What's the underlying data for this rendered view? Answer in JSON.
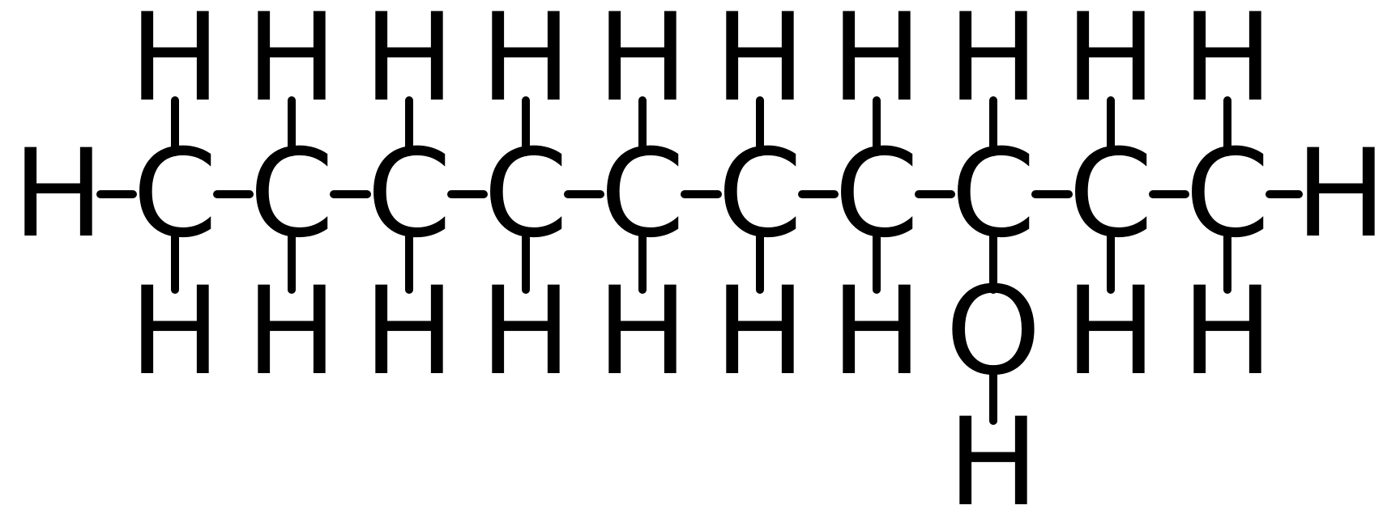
{
  "molecule": {
    "colors": {
      "atom": "#000000",
      "bond": "#000000",
      "background": "#ffffff"
    },
    "atoms": [
      {
        "id": "h-left",
        "element": "H"
      },
      {
        "id": "c1",
        "element": "C"
      },
      {
        "id": "c2",
        "element": "C"
      },
      {
        "id": "c3",
        "element": "C"
      },
      {
        "id": "c4",
        "element": "C"
      },
      {
        "id": "c5",
        "element": "C"
      },
      {
        "id": "c6",
        "element": "C"
      },
      {
        "id": "c7",
        "element": "C"
      },
      {
        "id": "c8",
        "element": "C"
      },
      {
        "id": "c9",
        "element": "C"
      },
      {
        "id": "c10",
        "element": "C"
      },
      {
        "id": "h-right",
        "element": "H"
      },
      {
        "id": "h-top-1",
        "element": "H"
      },
      {
        "id": "h-top-2",
        "element": "H"
      },
      {
        "id": "h-top-3",
        "element": "H"
      },
      {
        "id": "h-top-4",
        "element": "H"
      },
      {
        "id": "h-top-5",
        "element": "H"
      },
      {
        "id": "h-top-6",
        "element": "H"
      },
      {
        "id": "h-top-7",
        "element": "H"
      },
      {
        "id": "h-top-8",
        "element": "H"
      },
      {
        "id": "h-top-9",
        "element": "H"
      },
      {
        "id": "h-top-10",
        "element": "H"
      },
      {
        "id": "h-bot-1",
        "element": "H"
      },
      {
        "id": "h-bot-2",
        "element": "H"
      },
      {
        "id": "h-bot-3",
        "element": "H"
      },
      {
        "id": "h-bot-4",
        "element": "H"
      },
      {
        "id": "h-bot-5",
        "element": "H"
      },
      {
        "id": "h-bot-6",
        "element": "H"
      },
      {
        "id": "h-bot-7",
        "element": "H"
      },
      {
        "id": "o8",
        "element": "O"
      },
      {
        "id": "h-bot-9",
        "element": "H"
      },
      {
        "id": "h-bot-10",
        "element": "H"
      },
      {
        "id": "h-hydroxyl",
        "element": "H"
      }
    ],
    "bonds": [
      [
        "h-left",
        "c1"
      ],
      [
        "c1",
        "c2"
      ],
      [
        "c2",
        "c3"
      ],
      [
        "c3",
        "c4"
      ],
      [
        "c4",
        "c5"
      ],
      [
        "c5",
        "c6"
      ],
      [
        "c6",
        "c7"
      ],
      [
        "c7",
        "c8"
      ],
      [
        "c8",
        "c9"
      ],
      [
        "c9",
        "c10"
      ],
      [
        "c10",
        "h-right"
      ],
      [
        "c1",
        "h-top-1"
      ],
      [
        "c2",
        "h-top-2"
      ],
      [
        "c3",
        "h-top-3"
      ],
      [
        "c4",
        "h-top-4"
      ],
      [
        "c5",
        "h-top-5"
      ],
      [
        "c6",
        "h-top-6"
      ],
      [
        "c7",
        "h-top-7"
      ],
      [
        "c8",
        "h-top-8"
      ],
      [
        "c9",
        "h-top-9"
      ],
      [
        "c10",
        "h-top-10"
      ],
      [
        "c1",
        "h-bot-1"
      ],
      [
        "c2",
        "h-bot-2"
      ],
      [
        "c3",
        "h-bot-3"
      ],
      [
        "c4",
        "h-bot-4"
      ],
      [
        "c5",
        "h-bot-5"
      ],
      [
        "c6",
        "h-bot-6"
      ],
      [
        "c7",
        "h-bot-7"
      ],
      [
        "c8",
        "o8"
      ],
      [
        "c9",
        "h-bot-9"
      ],
      [
        "c10",
        "h-bot-10"
      ],
      [
        "o8",
        "h-hydroxyl"
      ]
    ]
  }
}
